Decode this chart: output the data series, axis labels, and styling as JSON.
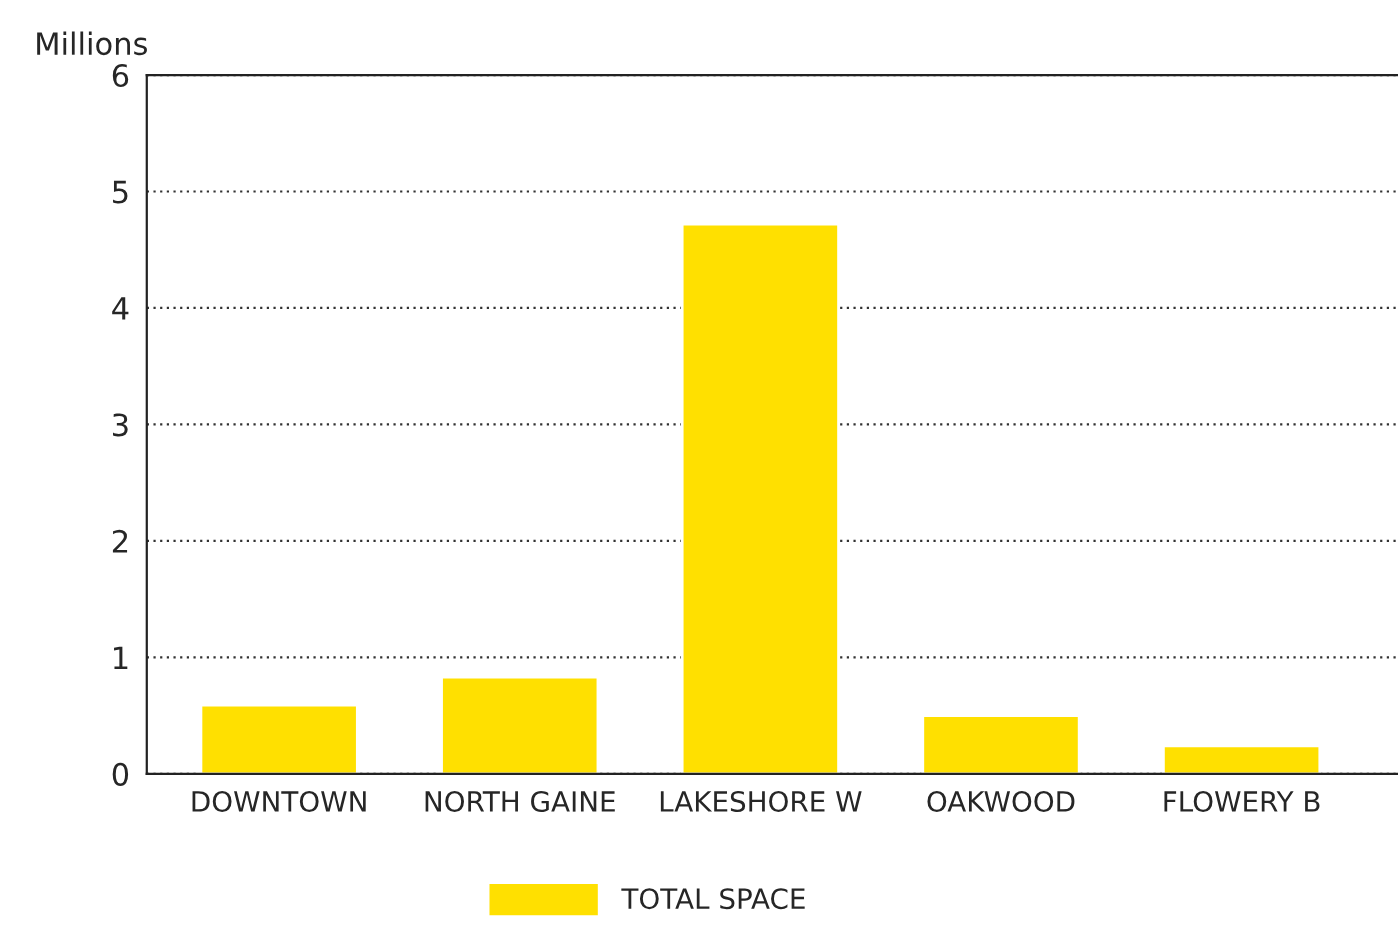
{
  "chart_data": {
    "type": "bar",
    "ylabel": "Millions",
    "categories": [
      "DOWNTOWN",
      "NORTH GAINE",
      "LAKESHORE W",
      "OAKWOOD",
      "FLOWERY B"
    ],
    "series": [
      {
        "name": "TOTAL SPACE",
        "color": "#ffe000",
        "values": [
          0.59,
          0.83,
          4.72,
          0.5,
          0.24
        ]
      }
    ],
    "ylim": [
      0,
      6
    ],
    "yticks": [
      0,
      1,
      2,
      3,
      4,
      5,
      6
    ],
    "grid": "y",
    "legend": "bottom"
  }
}
